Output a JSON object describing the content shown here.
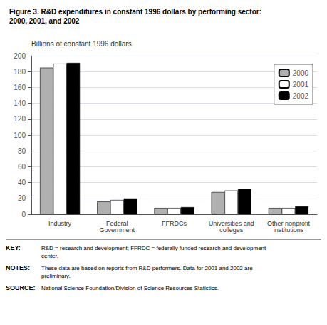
{
  "chart_data": {
    "type": "bar",
    "title": "Figure 3. R&D expenditures in constant 1996 dollars by performing sector:",
    "subtitle": "2000, 2001, and 2002",
    "ylabel": "Billions of constant 1996 dollars",
    "categories": [
      "Industry",
      "Federal\nGovernment",
      "FFRDCs",
      "Universities and\ncolleges",
      "Other nonprofit\ninstitutions"
    ],
    "series": [
      {
        "name": "2000",
        "color": "#b0b0b0",
        "values": [
          185,
          16,
          8,
          28,
          8
        ]
      },
      {
        "name": "2001",
        "color": "#ffffff",
        "values": [
          190,
          18,
          8,
          30,
          8
        ]
      },
      {
        "name": "2002",
        "color": "#000000",
        "values": [
          191,
          20,
          9,
          32,
          10
        ]
      }
    ],
    "ylim": [
      0,
      200
    ],
    "yticks": [
      0,
      20,
      40,
      60,
      80,
      100,
      120,
      140,
      160,
      180,
      200
    ],
    "grid": true,
    "legend": "upper right",
    "annotations": [
      {
        "label": "KEY:",
        "text": "R&D = research and development; FFRDC = federally funded research and development\ncenter."
      },
      {
        "label": "NOTES:",
        "text": "These data are based on reports from R&D performers. Data for 2001 and 2002 are preliminary."
      },
      {
        "label": "SOURCE:",
        "text": "National Science Foundation/Division of Science Resources Statistics."
      }
    ]
  }
}
